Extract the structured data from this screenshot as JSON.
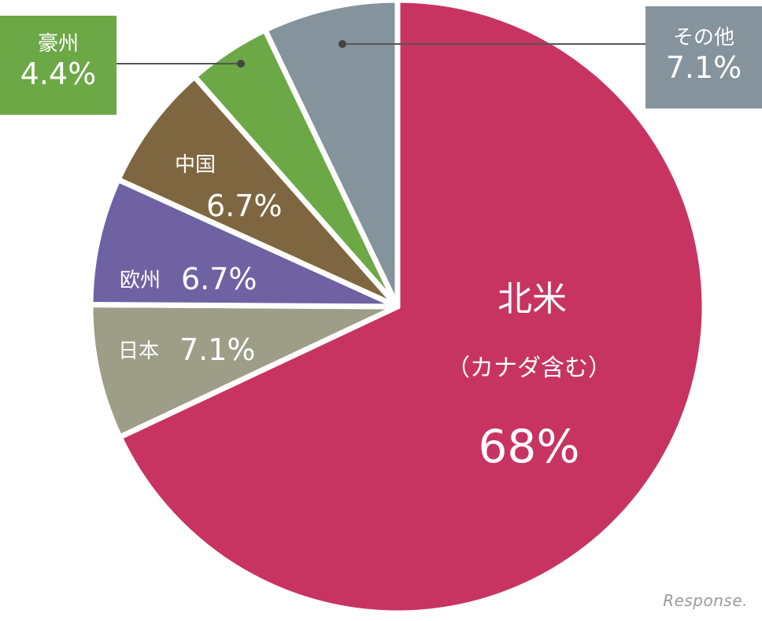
{
  "chart_data": {
    "type": "pie",
    "title": "",
    "slices": [
      {
        "key": "north_america",
        "name": "北米",
        "sub": "（カナダ含む）",
        "value": 68,
        "label": "68%",
        "color": "#C83461"
      },
      {
        "key": "japan",
        "name": "日本",
        "value": 7.1,
        "label": "7.1%",
        "color": "#9E9D87"
      },
      {
        "key": "europe",
        "name": "欧州",
        "value": 6.7,
        "label": "6.7%",
        "color": "#6F62A3"
      },
      {
        "key": "china",
        "name": "中国",
        "value": 6.7,
        "label": "6.7%",
        "color": "#7E6740"
      },
      {
        "key": "australia",
        "name": "豪州",
        "value": 4.4,
        "label": "4.4%",
        "color": "#6CA846"
      },
      {
        "key": "other",
        "name": "その他",
        "value": 7.1,
        "label": "7.1%",
        "color": "#84939C"
      }
    ]
  },
  "watermark": "Response."
}
